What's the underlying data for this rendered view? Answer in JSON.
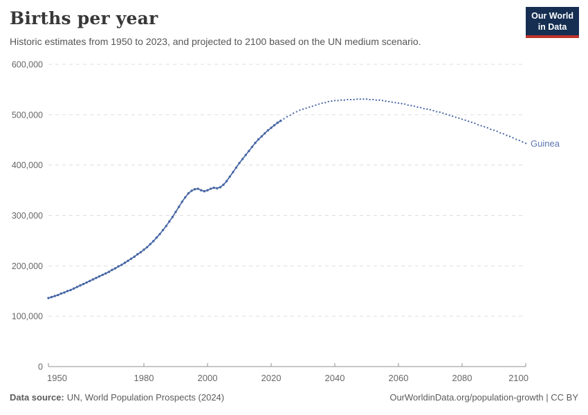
{
  "header": {
    "title": "Births per year",
    "subtitle": "Historic estimates from 1950 to 2023, and projected to 2100 based on the UN medium scenario.",
    "logo": {
      "line1": "Our World",
      "line2": "in Data",
      "bg_color": "#152e52",
      "accent_color": "#c0322b"
    }
  },
  "colors": {
    "line": "#4766a4",
    "entity_label": "#5b76b0",
    "grid": "#dddddd",
    "axis": "#8f8f8f",
    "tick_text": "#666666"
  },
  "chart_data": {
    "type": "line",
    "title": "Births per year",
    "subtitle": "Historic estimates from 1950 to 2023, and projected to 2100 based on the UN medium scenario.",
    "entity": "Guinea",
    "xlim": [
      1950,
      2100
    ],
    "ylim": [
      0,
      600000
    ],
    "grid": "dashed-horizontal",
    "legend_position": "end-of-line-label",
    "x_ticks": [
      1950,
      1980,
      2000,
      2020,
      2040,
      2060,
      2080,
      2100
    ],
    "y_ticks": [
      {
        "value": 0,
        "label": "0"
      },
      {
        "value": 100000,
        "label": "100,000"
      },
      {
        "value": 200000,
        "label": "200,000"
      },
      {
        "value": 300000,
        "label": "300,000"
      },
      {
        "value": 400000,
        "label": "400,000"
      },
      {
        "value": 500000,
        "label": "500,000"
      },
      {
        "value": 600000,
        "label": "600,000"
      }
    ],
    "series": [
      {
        "name": "historic estimates",
        "style": "solid",
        "years": [
          1950,
          1951,
          1952,
          1953,
          1954,
          1955,
          1956,
          1957,
          1958,
          1959,
          1960,
          1961,
          1962,
          1963,
          1964,
          1965,
          1966,
          1967,
          1968,
          1969,
          1970,
          1971,
          1972,
          1973,
          1974,
          1975,
          1976,
          1977,
          1978,
          1979,
          1980,
          1981,
          1982,
          1983,
          1984,
          1985,
          1986,
          1987,
          1988,
          1989,
          1990,
          1991,
          1992,
          1993,
          1994,
          1995,
          1996,
          1997,
          1998,
          1999,
          2000,
          2001,
          2002,
          2003,
          2004,
          2005,
          2006,
          2007,
          2008,
          2009,
          2010,
          2011,
          2012,
          2013,
          2014,
          2015,
          2016,
          2017,
          2018,
          2019,
          2020,
          2021,
          2022,
          2023
        ],
        "values": [
          136000,
          138000,
          140000,
          142000,
          145000,
          147000,
          150000,
          152000,
          155000,
          158000,
          161000,
          164000,
          167000,
          170000,
          173000,
          176000,
          179000,
          182000,
          185000,
          188000,
          192000,
          195000,
          199000,
          202000,
          206000,
          210000,
          214000,
          218000,
          223000,
          227000,
          232000,
          237000,
          243000,
          249000,
          256000,
          263000,
          271000,
          279000,
          288000,
          297000,
          307000,
          317000,
          327000,
          336000,
          344000,
          349000,
          352000,
          353000,
          350000,
          348000,
          350000,
          353000,
          355000,
          354000,
          356000,
          361000,
          368000,
          377000,
          386000,
          395000,
          404000,
          412000,
          420000,
          428000,
          436000,
          444000,
          451000,
          457000,
          463000,
          469000,
          474000,
          479000,
          484000,
          488000
        ]
      },
      {
        "name": "UN medium scenario projection",
        "style": "dotted",
        "years": [
          2023,
          2024,
          2025,
          2026,
          2027,
          2028,
          2029,
          2030,
          2031,
          2032,
          2033,
          2034,
          2035,
          2036,
          2037,
          2038,
          2039,
          2040,
          2041,
          2042,
          2043,
          2044,
          2045,
          2046,
          2047,
          2048,
          2049,
          2050,
          2051,
          2052,
          2053,
          2054,
          2055,
          2056,
          2057,
          2058,
          2059,
          2060,
          2061,
          2062,
          2063,
          2064,
          2065,
          2066,
          2067,
          2068,
          2069,
          2070,
          2071,
          2072,
          2073,
          2074,
          2075,
          2076,
          2077,
          2078,
          2079,
          2080,
          2081,
          2082,
          2083,
          2084,
          2085,
          2086,
          2087,
          2088,
          2089,
          2090,
          2091,
          2092,
          2093,
          2094,
          2095,
          2096,
          2097,
          2098,
          2099,
          2100
        ],
        "values": [
          488000,
          492000,
          496000,
          499000,
          503000,
          506000,
          509000,
          511000,
          513000,
          515000,
          517000,
          519000,
          521000,
          523000,
          524000,
          526000,
          527000,
          528000,
          528000,
          529000,
          529000,
          530000,
          530000,
          530000,
          531000,
          531000,
          531000,
          531000,
          530000,
          530000,
          529000,
          529000,
          528000,
          527000,
          526000,
          525000,
          524000,
          523000,
          522000,
          521000,
          519000,
          518000,
          517000,
          515000,
          514000,
          512000,
          511000,
          510000,
          508000,
          506000,
          505000,
          503000,
          501000,
          499000,
          497000,
          495000,
          493000,
          491000,
          489000,
          487000,
          485000,
          483000,
          480000,
          478000,
          476000,
          474000,
          471000,
          469000,
          467000,
          464000,
          462000,
          459000,
          457000,
          454000,
          451000,
          449000,
          446000,
          443000
        ]
      }
    ]
  },
  "footer": {
    "data_source_label": "Data source:",
    "data_source_text": "UN, World Population Prospects (2024)",
    "link_text": "OurWorldinData.org/population-growth | CC BY"
  }
}
